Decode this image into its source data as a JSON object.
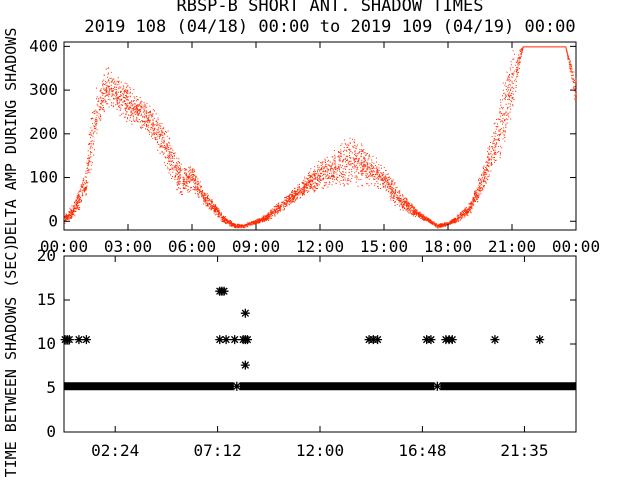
{
  "chart_data": [
    {
      "type": "scatter",
      "title": "RBSP-B SHORT ANT. SHADOW TIMES",
      "subtitle": "2019 108 (04/18) 00:00 to 2019 109 (04/19) 00:00",
      "xlabel": "",
      "ylabel": "DELTA AMP DURING SHADOWS",
      "xlim": [
        "00:00",
        "24:00"
      ],
      "ylim": [
        -20,
        410
      ],
      "xticks": [
        "00:00",
        "03:00",
        "06:00",
        "09:00",
        "12:00",
        "15:00",
        "18:00",
        "21:00",
        "00:00"
      ],
      "yticks": [
        "0",
        "100",
        "200",
        "300",
        "400"
      ],
      "color": "#ff2a00",
      "grid": false,
      "series": [
        {
          "envelope_hours": [
            0.0,
            0.5,
            1.0,
            1.3,
            1.6,
            2.0,
            2.5,
            3.0,
            3.5,
            4.0,
            4.5,
            5.0,
            5.5,
            6.0,
            6.5,
            7.0,
            7.5,
            8.0,
            8.4,
            9.0,
            9.5,
            10.0,
            10.5,
            11.0,
            11.5,
            12.0,
            12.5,
            13.0,
            13.5,
            14.0,
            14.5,
            15.0,
            15.5,
            16.0,
            16.5,
            17.0,
            17.5,
            18.0,
            18.5,
            19.0,
            19.5,
            20.0,
            20.5,
            21.0,
            21.5,
            22.0,
            22.5,
            23.0,
            23.5,
            24.0
          ],
          "center": [
            5,
            30,
            90,
            200,
            260,
            310,
            290,
            270,
            250,
            230,
            200,
            140,
            90,
            100,
            60,
            30,
            5,
            -10,
            -10,
            0,
            10,
            30,
            50,
            70,
            90,
            110,
            120,
            130,
            140,
            130,
            115,
            100,
            60,
            40,
            20,
            5,
            -10,
            -5,
            10,
            30,
            80,
            150,
            230,
            320,
            400,
            400,
            400,
            400,
            400,
            290
          ],
          "spread": [
            10,
            20,
            40,
            80,
            60,
            50,
            50,
            50,
            40,
            40,
            50,
            60,
            40,
            30,
            20,
            15,
            10,
            5,
            5,
            5,
            10,
            15,
            15,
            20,
            30,
            40,
            40,
            60,
            60,
            50,
            40,
            30,
            30,
            20,
            10,
            5,
            5,
            5,
            10,
            15,
            30,
            50,
            80,
            80,
            0,
            0,
            0,
            0,
            0,
            40
          ]
        }
      ]
    },
    {
      "type": "scatter",
      "title": "",
      "xlabel": "",
      "ylabel": "TIME BETWEEN SHADOWS (SEC)",
      "xlim": [
        "00:00",
        "24:00"
      ],
      "ylim": [
        0,
        20
      ],
      "xticks": [
        "02:24",
        "07:12",
        "12:00",
        "16:48",
        "21:35"
      ],
      "yticks": [
        "0",
        "5",
        "10",
        "15",
        "20"
      ],
      "marker": "asterisk",
      "baseline": {
        "value": 5.2,
        "from_hours": 0.0,
        "to_hours": 24.0
      },
      "points": [
        {
          "x": 0.05,
          "y": 10.5
        },
        {
          "x": 0.15,
          "y": 10.5
        },
        {
          "x": 0.25,
          "y": 10.5
        },
        {
          "x": 0.7,
          "y": 10.5
        },
        {
          "x": 1.05,
          "y": 10.5
        },
        {
          "x": 7.3,
          "y": 16.0
        },
        {
          "x": 7.4,
          "y": 16.0
        },
        {
          "x": 7.5,
          "y": 16.0
        },
        {
          "x": 7.3,
          "y": 10.5
        },
        {
          "x": 7.6,
          "y": 10.5
        },
        {
          "x": 8.0,
          "y": 10.5
        },
        {
          "x": 8.1,
          "y": 5.2
        },
        {
          "x": 8.4,
          "y": 10.5
        },
        {
          "x": 8.5,
          "y": 10.5
        },
        {
          "x": 8.6,
          "y": 10.5
        },
        {
          "x": 8.5,
          "y": 13.5
        },
        {
          "x": 8.5,
          "y": 7.6
        },
        {
          "x": 14.3,
          "y": 10.5
        },
        {
          "x": 14.5,
          "y": 10.5
        },
        {
          "x": 14.7,
          "y": 10.5
        },
        {
          "x": 17.0,
          "y": 10.5
        },
        {
          "x": 17.2,
          "y": 10.5
        },
        {
          "x": 17.5,
          "y": 5.2
        },
        {
          "x": 17.9,
          "y": 10.5
        },
        {
          "x": 18.05,
          "y": 10.5
        },
        {
          "x": 18.2,
          "y": 10.5
        },
        {
          "x": 20.2,
          "y": 10.5
        },
        {
          "x": 22.3,
          "y": 10.5
        }
      ]
    }
  ]
}
